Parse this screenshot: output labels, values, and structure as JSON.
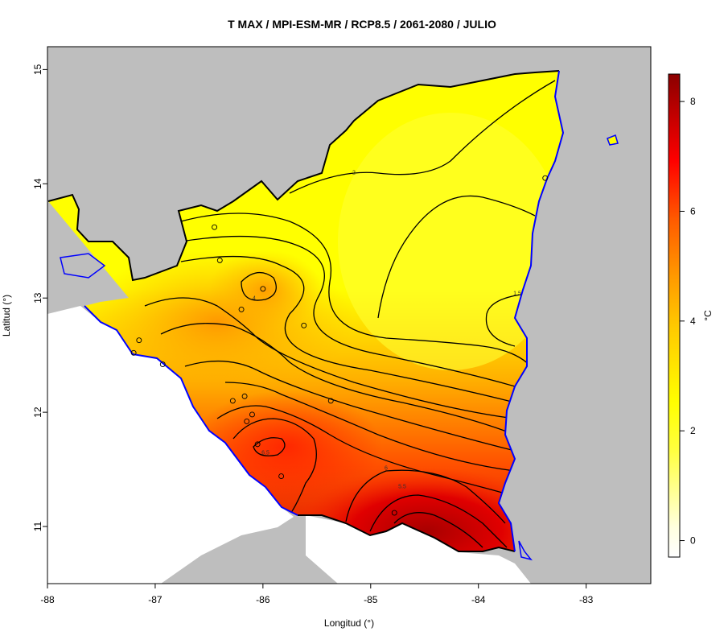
{
  "title": "T MAX / MPI-ESM-MR / RCP8.5 / 2061-2080 / JULIO",
  "xlabel": "Longitud (°)",
  "ylabel": "Latitud (°)",
  "colorbar": {
    "unit": "°C",
    "ticks": [
      0,
      2,
      4,
      6,
      8
    ],
    "range": [
      -0.3,
      8.5
    ]
  },
  "axes": {
    "x_ticks": [
      -88,
      -87,
      -86,
      -85,
      -84,
      -83
    ],
    "y_ticks": [
      11,
      12,
      13,
      14,
      15
    ],
    "xlim": [
      -88.0,
      -82.4
    ],
    "ylim": [
      10.5,
      15.2
    ]
  },
  "contour_labels": [
    "2",
    "1.5",
    "4",
    "6.5",
    "6",
    "5.5"
  ],
  "stations": [
    {
      "lon": -86.45,
      "lat": 13.62
    },
    {
      "lon": -86.4,
      "lat": 13.33
    },
    {
      "lon": -86.0,
      "lat": 13.08
    },
    {
      "lon": -86.2,
      "lat": 12.9
    },
    {
      "lon": -85.62,
      "lat": 12.76
    },
    {
      "lon": -87.15,
      "lat": 12.63
    },
    {
      "lon": -87.2,
      "lat": 12.52
    },
    {
      "lon": -86.93,
      "lat": 12.42
    },
    {
      "lon": -86.28,
      "lat": 12.1
    },
    {
      "lon": -86.17,
      "lat": 12.14
    },
    {
      "lon": -86.1,
      "lat": 11.98
    },
    {
      "lon": -86.15,
      "lat": 11.92
    },
    {
      "lon": -85.37,
      "lat": 12.1
    },
    {
      "lon": -86.05,
      "lat": 11.72
    },
    {
      "lon": -85.83,
      "lat": 11.44
    },
    {
      "lon": -84.78,
      "lat": 11.12
    },
    {
      "lon": -83.38,
      "lat": 14.05
    }
  ],
  "colors": {
    "land": "#bebebe",
    "coast": "#0000ff",
    "border": "#000000",
    "low": "#ffff00",
    "high": "#8b0000"
  }
}
